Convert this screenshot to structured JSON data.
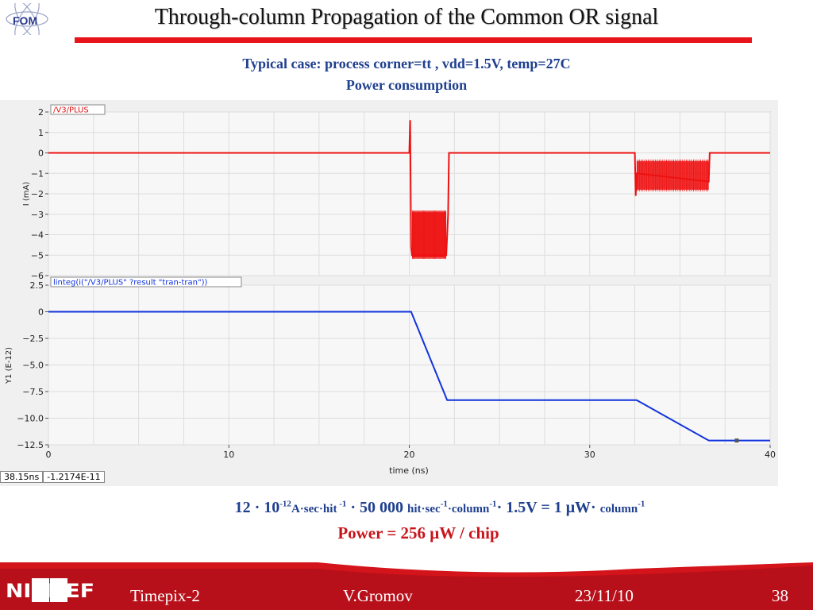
{
  "slide": {
    "title": "Through-column Propagation of the Common OR signal",
    "subtitle1": "Typical case: process corner=tt , vdd=1.5V, temp=27C",
    "subtitle2": "Power consumption",
    "logo_left": "FOM",
    "logo_right": "NIKHEF",
    "formula": {
      "p1": "12 · 10",
      "p1_sup": "-12",
      "p2": "A·sec·hit",
      "p2_sup": " -1",
      "p3": " · 50 000 ",
      "p4": "hit·sec",
      "p4_sup": "-1",
      "p5": "·column",
      "p5_sup": "-1",
      "p6": "· 1.5V = 1 μW· ",
      "p7": "column",
      "p7_sup": "-1"
    },
    "power": "Power = 256 μW / chip",
    "footer": {
      "left": "Timepix-2",
      "center": "V.Gromov",
      "date": "23/11/10",
      "page": "38"
    },
    "cursor": {
      "time": "38.15ns",
      "value": "-1.2174E-11"
    }
  },
  "colors": {
    "title_bar": "#e8141b",
    "subtitle": "#1f3f8f",
    "top_trace": "#ee1111",
    "bottom_trace": "#1133dd",
    "power_text": "#c8141b",
    "footer_red": "#d4141b"
  },
  "chart_data": [
    {
      "type": "line",
      "title": "/V3/PLUS",
      "ylabel": "I (mA)",
      "xlabel": "",
      "xlim": [
        0,
        40
      ],
      "ylim": [
        -6,
        2
      ],
      "yticks": [
        2,
        1,
        0,
        -1,
        -2,
        -3,
        -4,
        -5,
        -6
      ],
      "ytick_labels": [
        "2",
        "1",
        "0",
        "−1",
        "−2",
        "−3",
        "−4",
        "−5",
        "−6"
      ],
      "grid": true,
      "series": [
        {
          "name": "/V3/PLUS",
          "x": [
            0,
            20.0,
            20.05,
            20.1,
            20.15,
            22.05,
            22.15,
            22.2,
            32.5,
            32.55,
            32.6,
            36.6,
            36.65,
            40
          ],
          "y": [
            0,
            0,
            1.6,
            -4.6,
            -5.0,
            -5.0,
            -3.0,
            0,
            0,
            -2.1,
            -1.0,
            -1.4,
            0,
            0
          ],
          "noise_bands": [
            {
              "x_start": 20.15,
              "x_end": 22.05,
              "y_low": -5.1,
              "y_high": -2.9
            },
            {
              "x_start": 32.6,
              "x_end": 36.6,
              "y_low": -1.8,
              "y_high": -0.4
            }
          ]
        }
      ]
    },
    {
      "type": "line",
      "title": "linteg(i(\"/V3/PLUS\" ?result \"tran-tran\"))",
      "ylabel": "Y1 (E-12)",
      "xlabel": "time (ns)",
      "xlim": [
        0,
        40
      ],
      "ylim": [
        -12.5,
        2.5
      ],
      "xticks": [
        0,
        10,
        20,
        30,
        40
      ],
      "xtick_labels": [
        "0",
        "10",
        "20",
        "30",
        "40"
      ],
      "yticks": [
        2.5,
        0,
        -2.5,
        -5.0,
        -7.5,
        -10.0,
        -12.5
      ],
      "ytick_labels": [
        "2.5",
        "0",
        "−2.5",
        "−5.0",
        "−7.5",
        "−10.0",
        "−12.5"
      ],
      "grid": true,
      "series": [
        {
          "name": "linteg(i(\"/V3/PLUS\" ?result \"tran-tran\"))",
          "x": [
            0,
            20.1,
            22.1,
            32.6,
            36.6,
            40
          ],
          "y": [
            0,
            0,
            -8.3,
            -8.3,
            -12.1,
            -12.1
          ]
        }
      ],
      "marker": {
        "x": 38.15,
        "y": -12.1
      }
    }
  ]
}
